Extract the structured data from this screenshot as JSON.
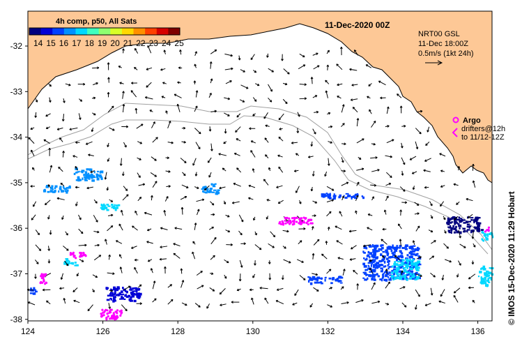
{
  "map": {
    "date_title": "11-Dec-2020 00Z",
    "colorbar_title": "4h comp, p50, All Sats",
    "colorbar_ticks": [
      "14",
      "15",
      "16",
      "17",
      "18",
      "19",
      "20",
      "21",
      "22",
      "23",
      "24",
      "25"
    ],
    "colorbar_colors": [
      "#00007f",
      "#0000d6",
      "#0040ff",
      "#0090ff",
      "#00d8ff",
      "#40ffbf",
      "#8fff70",
      "#d8ff28",
      "#ffd800",
      "#ff9000",
      "#ff4000",
      "#d60000",
      "#7f0000"
    ],
    "current_note": {
      "line1": "NRT00 GSL",
      "line2": "11-Dec 18:00Z",
      "line3": "0.5m/s (1kt 24h)"
    },
    "legend": {
      "argo_label": "Argo",
      "drifters_line1": "drifters@12h",
      "drifters_line2": "to 11/12-12Z"
    },
    "credit": "© IMOS 15-Dec-2020 11:29 Hobart",
    "x_ticks": [
      "124",
      "126",
      "128",
      "130",
      "132",
      "134",
      "136"
    ],
    "y_ticks": [
      "-32",
      "-33",
      "-34",
      "-35",
      "-36",
      "-37",
      "-38"
    ],
    "colors": {
      "land": "#fdc896",
      "coast": "#000000",
      "isobath": "#a0a0a0",
      "argo": "#ff00ff"
    }
  }
}
